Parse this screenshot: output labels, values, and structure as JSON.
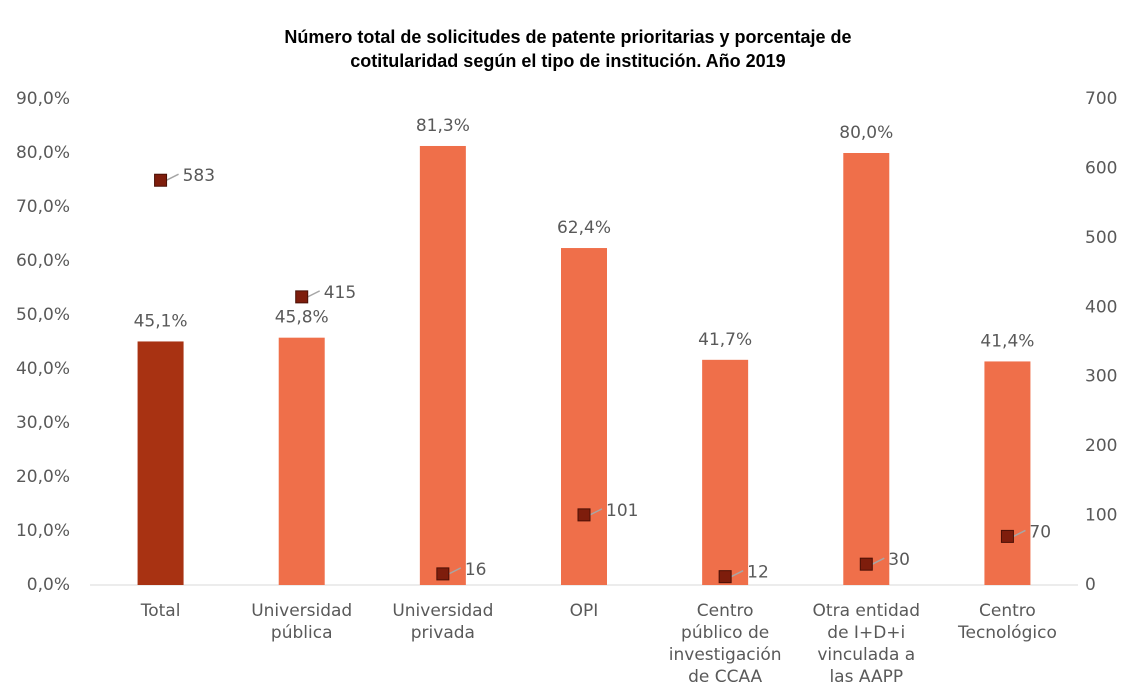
{
  "chart_data": {
    "type": "bar",
    "title": "Número total de solicitudes de patente prioritarias y porcentaje de cotitularidad según el tipo de institución. Año 2019",
    "categories": [
      "Total",
      "Universidad pública",
      "Universidad privada",
      "OPI",
      "Centro público de investigación de CCAA",
      "Otra entidad de I+D+i vinculada a las AAPP",
      "Centro Tecnológico"
    ],
    "series": [
      {
        "type": "bar",
        "colors": [
          "#a83212",
          "#ef6f4a",
          "#ef6f4a",
          "#ef6f4a",
          "#ef6f4a",
          "#ef6f4a",
          "#ef6f4a"
        ],
        "values": [
          45.1,
          45.8,
          81.3,
          62.4,
          41.7,
          80.0,
          41.4
        ],
        "value_labels": [
          "45,1%",
          "45,8%",
          "81,3%",
          "62,4%",
          "41,7%",
          "80,0%",
          "41,4%"
        ]
      },
      {
        "type": "scatter",
        "axis": "y2",
        "color": "#7e1d0c",
        "values": [
          583,
          415,
          16,
          101,
          12,
          30,
          70
        ]
      }
    ],
    "ylim": [
      0,
      90
    ],
    "yticks": [
      {
        "value": 0,
        "label": "0,0%"
      },
      {
        "value": 10,
        "label": "10,0%"
      },
      {
        "value": 20,
        "label": "20,0%"
      },
      {
        "value": 30,
        "label": "30,0%"
      },
      {
        "value": 40,
        "label": "40,0%"
      },
      {
        "value": 50,
        "label": "50,0%"
      },
      {
        "value": 60,
        "label": "60,0%"
      },
      {
        "value": 70,
        "label": "70,0%"
      },
      {
        "value": 80,
        "label": "80,0%"
      },
      {
        "value": 90,
        "label": "90,0%"
      }
    ],
    "y2lim": [
      0,
      700
    ],
    "y2ticks": [
      0,
      100,
      200,
      300,
      400,
      500,
      600,
      700
    ]
  }
}
